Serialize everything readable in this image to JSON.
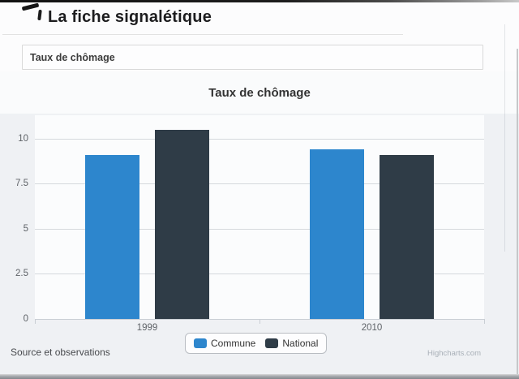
{
  "page": {
    "title": "La fiche signalétique",
    "section_label": "Taux de chômage",
    "source_note": "Source et observations",
    "credits": "Highcharts.com"
  },
  "colors": {
    "commune": "#2d86cd",
    "national": "#2f3c47",
    "grid": "#d5d9dd",
    "axis": "#c9ced4"
  },
  "chart_data": {
    "type": "bar",
    "title": "Taux de chômage",
    "categories": [
      "1999",
      "2010"
    ],
    "series": [
      {
        "name": "Commune",
        "color": "#2d86cd",
        "values": [
          9.1,
          9.4
        ]
      },
      {
        "name": "National",
        "color": "#2f3c47",
        "values": [
          10.5,
          9.1
        ]
      }
    ],
    "xlabel": "",
    "ylabel": "",
    "ylim": [
      0,
      11.3
    ],
    "yticks": [
      0,
      2.5,
      5,
      7.5,
      10
    ],
    "grid": true,
    "legend_position": "bottom-center",
    "credits": "Highcharts.com"
  }
}
